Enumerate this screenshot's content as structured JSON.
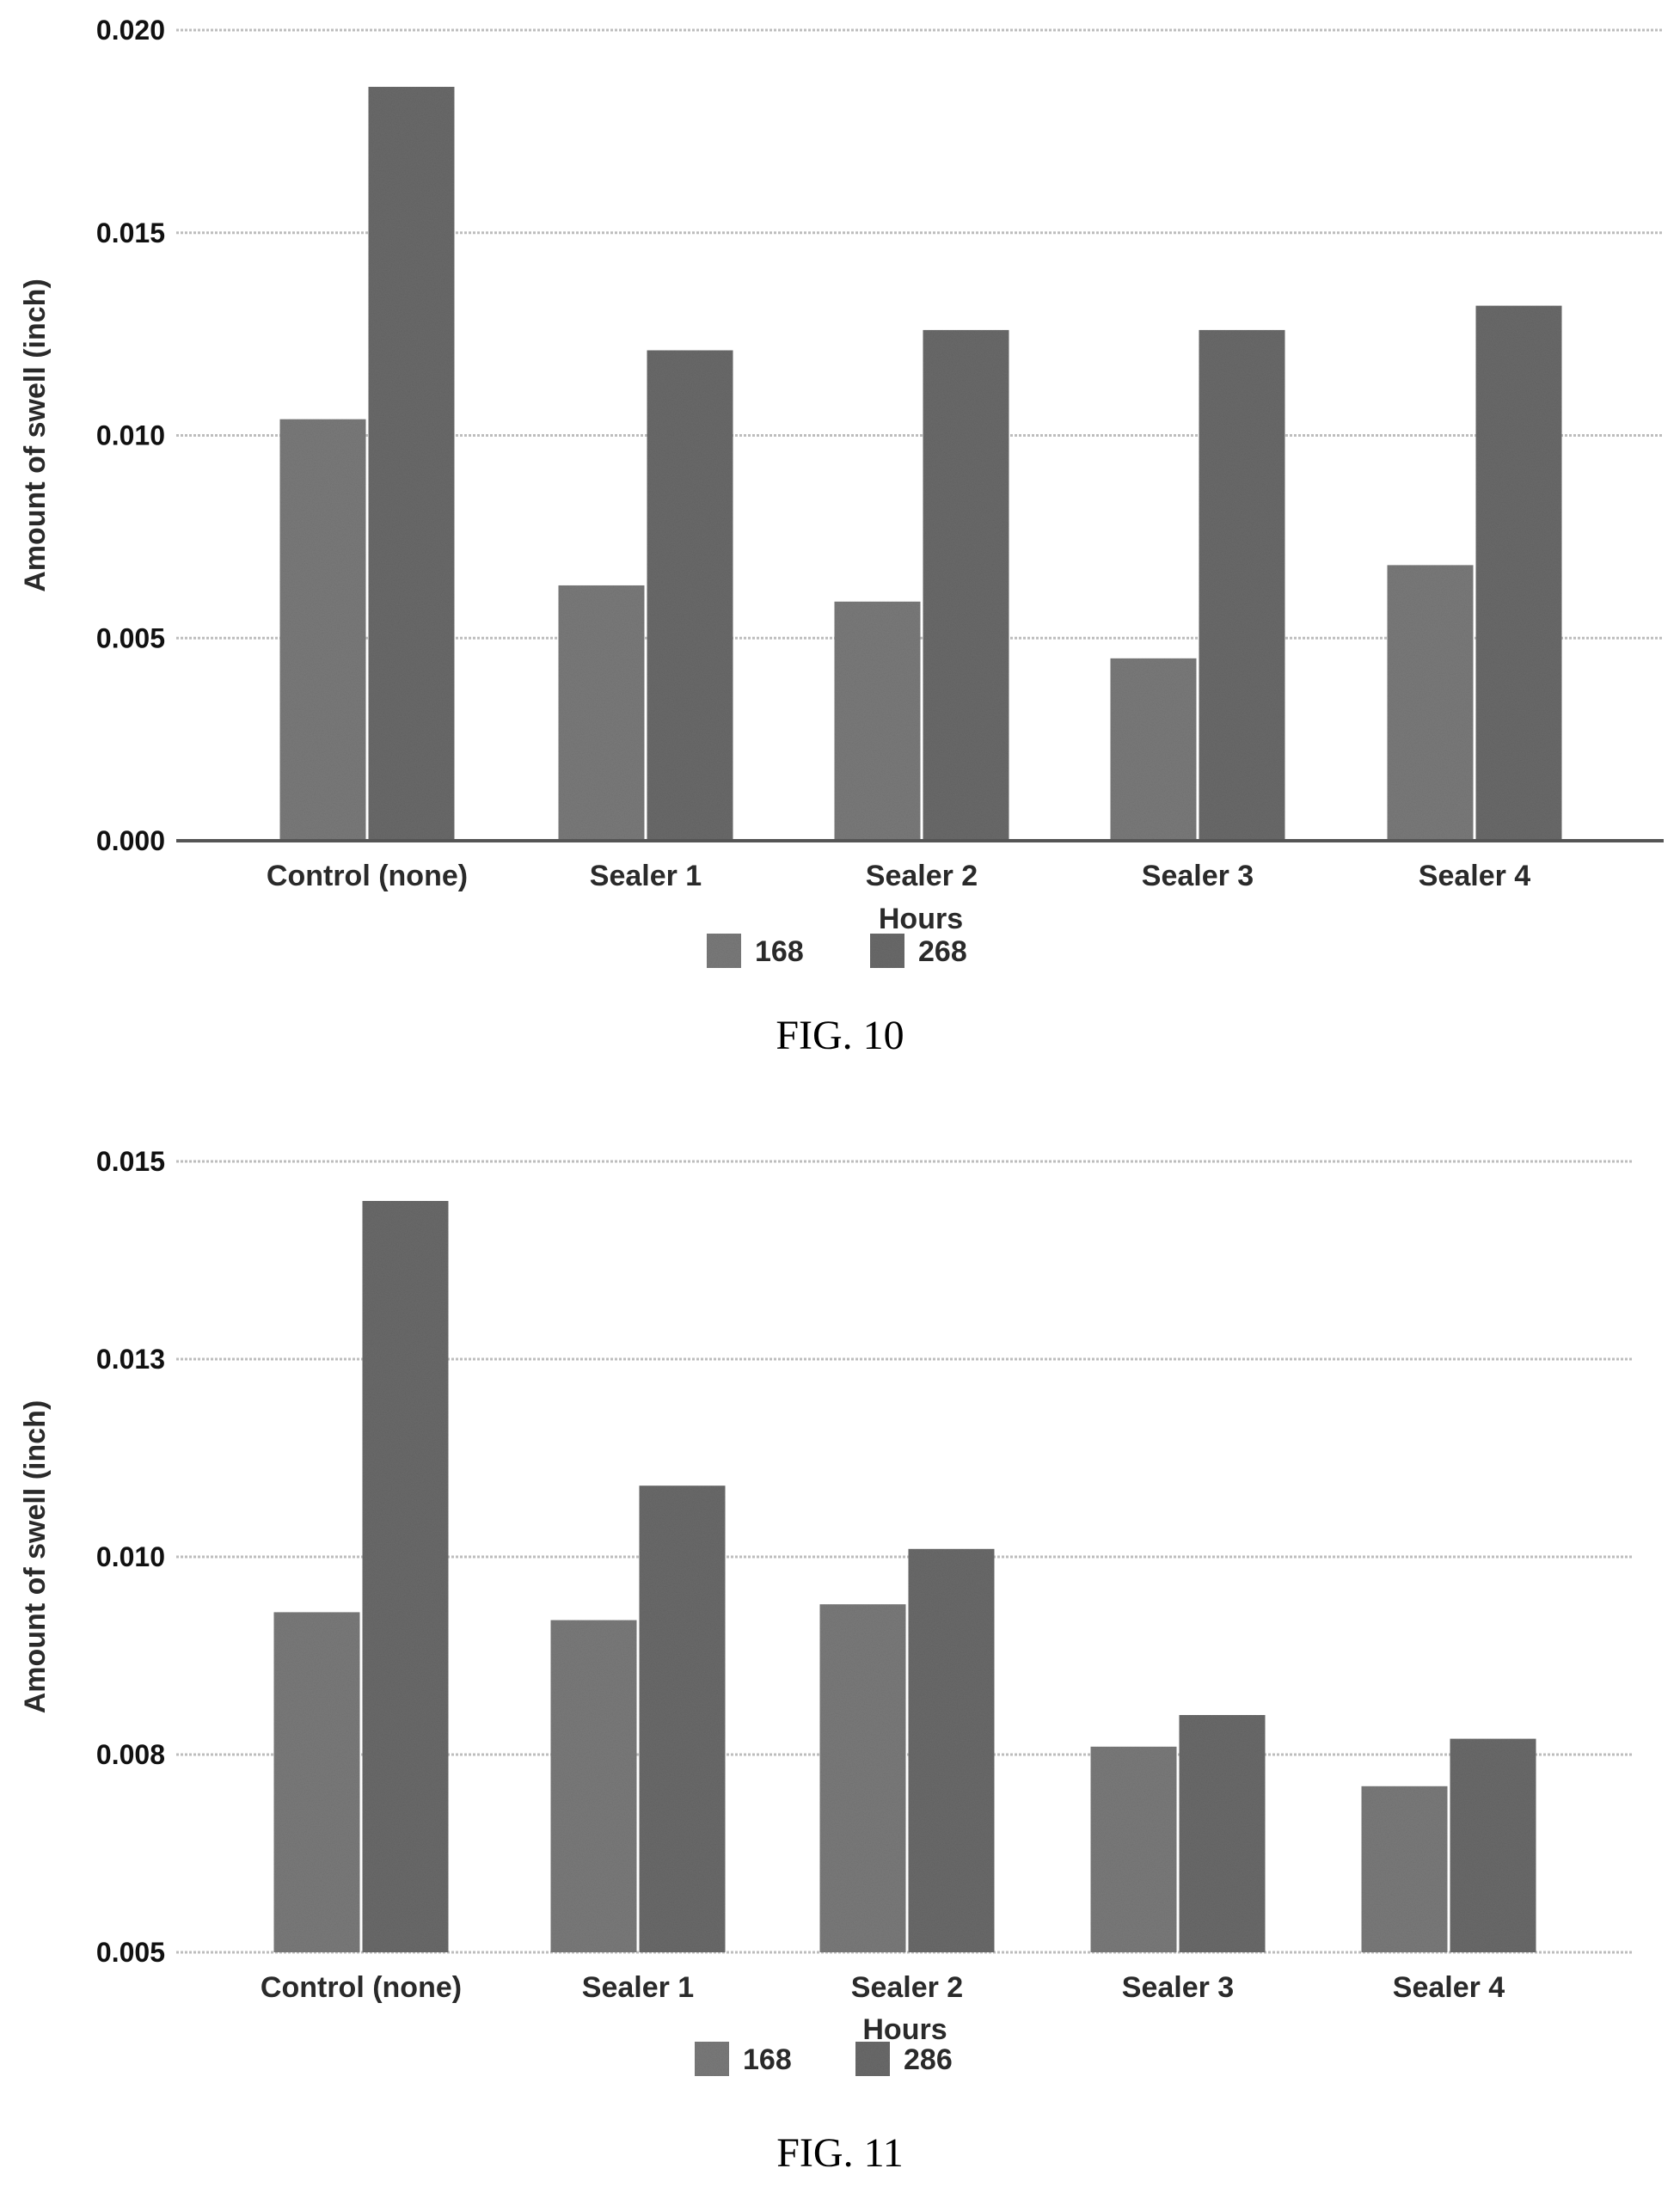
{
  "colors": {
    "series_168": "#7a7a7a",
    "series_268": "#6a6a6a",
    "series_286": "#6a6a6a",
    "grid": "#bdbdbd",
    "text": "#2a2a2a"
  },
  "chart_data": [
    {
      "type": "bar",
      "caption": "FIG. 10",
      "xlabel": "Hours",
      "ylabel": "Amount of swell (inch)",
      "ylim": [
        0.0,
        0.02
      ],
      "yticks": [
        "0.000",
        "0.005",
        "0.010",
        "0.015",
        "0.020"
      ],
      "ytick_values": [
        0.0,
        0.005,
        0.01,
        0.015,
        0.02
      ],
      "grid": true,
      "legend_position": "bottom-center",
      "categories": [
        "Control (none)",
        "Sealer 1",
        "Sealer 2",
        "Sealer 3",
        "Sealer 4"
      ],
      "series": [
        {
          "name": "168",
          "values": [
            0.0104,
            0.0063,
            0.0059,
            0.0045,
            0.0068
          ]
        },
        {
          "name": "268",
          "values": [
            0.0186,
            0.0121,
            0.0126,
            0.0126,
            0.0132
          ]
        }
      ]
    },
    {
      "type": "bar",
      "caption": "FIG. 11",
      "xlabel": "Hours",
      "ylabel": "Amount of swell (inch)",
      "ylim": [
        0.005,
        0.015
      ],
      "yticks": [
        "0.005",
        "0.008",
        "0.010",
        "0.013",
        "0.015"
      ],
      "ytick_values": [
        0.005,
        0.0075,
        0.01,
        0.0125,
        0.015
      ],
      "grid": true,
      "legend_position": "bottom-center",
      "categories": [
        "Control (none)",
        "Sealer 1",
        "Sealer 2",
        "Sealer 3",
        "Sealer 4"
      ],
      "series": [
        {
          "name": "168",
          "values": [
            0.0093,
            0.0092,
            0.0094,
            0.0076,
            0.0071
          ]
        },
        {
          "name": "286",
          "values": [
            0.0145,
            0.0109,
            0.0101,
            0.008,
            0.0077
          ]
        }
      ]
    }
  ]
}
